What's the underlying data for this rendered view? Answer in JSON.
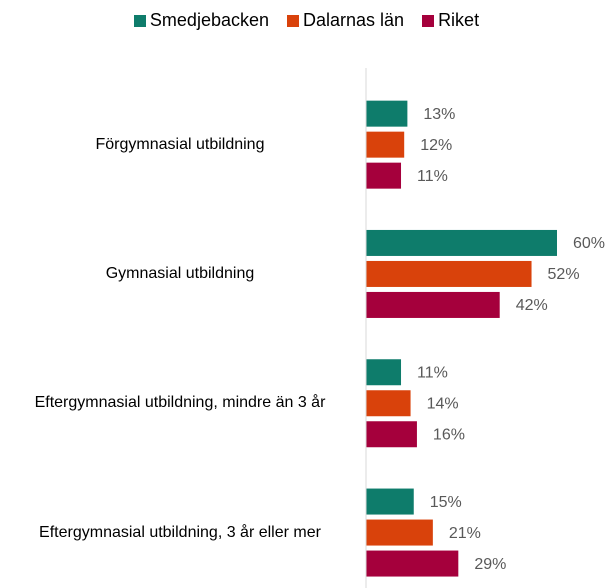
{
  "chart_data": {
    "type": "bar",
    "orientation": "horizontal",
    "categories": [
      "Förgymnasial utbildning",
      "Gymnasial utbildning",
      "Eftergymnasial utbildning, mindre än 3 år",
      "Eftergymnasial utbildning, 3 år eller mer"
    ],
    "series": [
      {
        "name": "Smedjebacken",
        "color": "#0e7c6b",
        "values": [
          13,
          60,
          11,
          15
        ],
        "value_labels": [
          "13%",
          "60%",
          "11%",
          "15%"
        ]
      },
      {
        "name": "Dalarnas län",
        "color": "#d9420b",
        "values": [
          12,
          52,
          14,
          21
        ],
        "value_labels": [
          "12%",
          "52%",
          "14%",
          "21%"
        ]
      },
      {
        "name": "Riket",
        "color": "#a5003c",
        "values": [
          11,
          42,
          16,
          29
        ],
        "value_labels": [
          "11%",
          "42%",
          "16%",
          "29%"
        ]
      }
    ],
    "xlim": [
      0,
      60
    ]
  }
}
